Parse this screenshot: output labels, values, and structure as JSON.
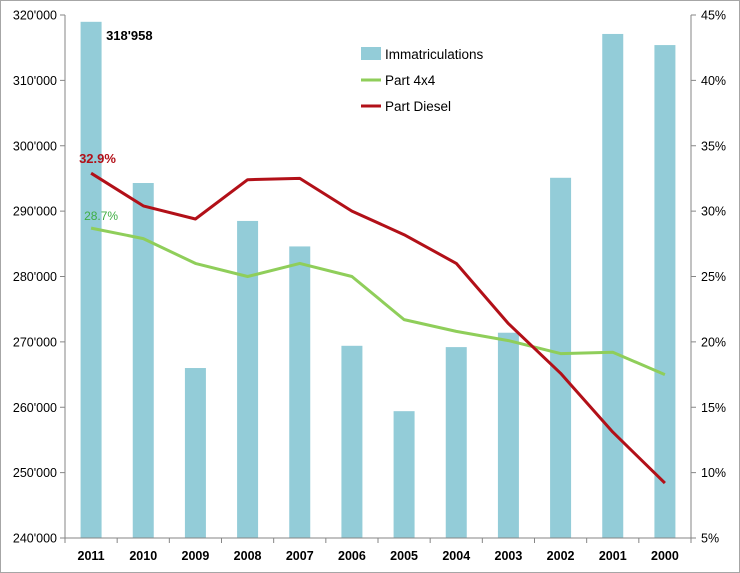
{
  "chart_data": {
    "type": "bar",
    "categories": [
      "2011",
      "2010",
      "2009",
      "2008",
      "2007",
      "2006",
      "2005",
      "2004",
      "2003",
      "2002",
      "2001",
      "2000"
    ],
    "series": [
      {
        "name": "Immatriculations",
        "type": "bar",
        "axis": "left",
        "color": "#93ccd8",
        "values": [
          318958,
          294300,
          266000,
          288500,
          284600,
          269400,
          259400,
          269200,
          271400,
          295100,
          317100,
          315400
        ]
      },
      {
        "name": "Part 4x4",
        "type": "line",
        "axis": "right",
        "color": "#8fce5a",
        "values": [
          28.7,
          27.9,
          26.0,
          25.0,
          26.0,
          25.0,
          21.7,
          20.8,
          20.1,
          19.1,
          19.2,
          17.5
        ]
      },
      {
        "name": "Part Diesel",
        "type": "line",
        "axis": "right",
        "color": "#b21018",
        "values": [
          32.9,
          30.4,
          29.4,
          32.4,
          32.5,
          30.0,
          28.2,
          26.0,
          21.4,
          17.6,
          13.1,
          9.2
        ]
      }
    ],
    "annotations": {
      "bar_max_label": "318'958",
      "diesel_first_label": "32.9%",
      "suv_first_label": "28.7%"
    },
    "left_axis": {
      "ylim": [
        240000,
        320000
      ],
      "ticks": [
        {
          "value": 240000,
          "label": "240'000"
        },
        {
          "value": 250000,
          "label": "250'000"
        },
        {
          "value": 260000,
          "label": "260'000"
        },
        {
          "value": 270000,
          "label": "270'000"
        },
        {
          "value": 280000,
          "label": "280'000"
        },
        {
          "value": 290000,
          "label": "290'000"
        },
        {
          "value": 300000,
          "label": "300'000"
        },
        {
          "value": 310000,
          "label": "310'000"
        },
        {
          "value": 320000,
          "label": "320'000"
        }
      ]
    },
    "right_axis": {
      "ylim": [
        5,
        45
      ],
      "ticks": [
        {
          "value": 5,
          "label": "5%"
        },
        {
          "value": 10,
          "label": "10%"
        },
        {
          "value": 15,
          "label": "15%"
        },
        {
          "value": 20,
          "label": "20%"
        },
        {
          "value": 25,
          "label": "25%"
        },
        {
          "value": 30,
          "label": "30%"
        },
        {
          "value": 35,
          "label": "35%"
        },
        {
          "value": 40,
          "label": "40%"
        },
        {
          "value": 45,
          "label": "45%"
        }
      ]
    },
    "grid": false,
    "legend_position": "top-center"
  }
}
